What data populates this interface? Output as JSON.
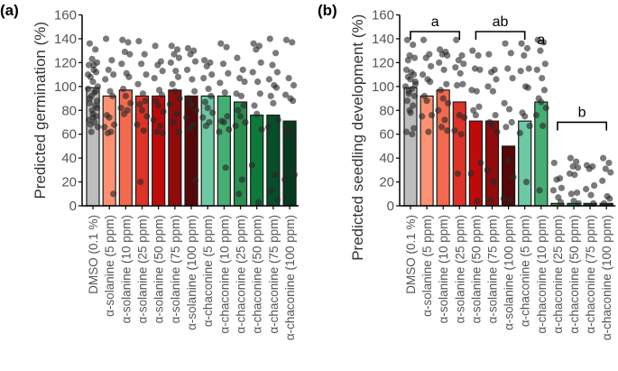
{
  "chart_data": [
    {
      "type": "bar",
      "panel_label": "(a)",
      "title": "",
      "xlabel": "",
      "ylabel": "Predicted germination (%)",
      "ylim": [
        0,
        160
      ],
      "yticks": [
        0,
        20,
        40,
        60,
        80,
        100,
        120,
        140,
        160
      ],
      "grid": false,
      "categories": [
        "DMSO (0.1 %)",
        "α-solanine (5 ppm)",
        "α-solanine (10 ppm)",
        "α-solanine (25 ppm)",
        "α-solanine (50 ppm)",
        "α-solanine (75 ppm)",
        "α-solanine (100 ppm)",
        "α-chaconine (5 ppm)",
        "α-chaconine (10 ppm)",
        "α-chaconine (25 ppm)",
        "α-chaconine (50 ppm)",
        "α-chaconine (75 ppm)",
        "α-chaconine (100 ppm)"
      ],
      "values": [
        99,
        92,
        97,
        92,
        92,
        97,
        92,
        92,
        92,
        87,
        76,
        76,
        71
      ],
      "colors": [
        "#bdbdbd",
        "#fc9272",
        "#f46a4e",
        "#dd3427",
        "#c00a0a",
        "#900b0b",
        "#560808",
        "#6cc9a3",
        "#45ae72",
        "#2b8f50",
        "#0d7a3a",
        "#064f29",
        "#073a1e"
      ],
      "points": [
        [
          136,
          131,
          123,
          120,
          118,
          114,
          112,
          108,
          104,
          100,
          98,
          95,
          92,
          88,
          86,
          84,
          80,
          77,
          75,
          72,
          70,
          68,
          66,
          62,
          118,
          110,
          96,
          90,
          82,
          74
        ],
        [
          140,
          122,
          114,
          110,
          106,
          96,
          92,
          76,
          74,
          68,
          66,
          62,
          61,
          10
        ],
        [
          139,
          137,
          129,
          127,
          119,
          111,
          108,
          98,
          92,
          86,
          82,
          80,
          77
        ],
        [
          138,
          127,
          119,
          110,
          102,
          94,
          88,
          85,
          80,
          75,
          68,
          63,
          20
        ],
        [
          134,
          121,
          118,
          113,
          107,
          97,
          93,
          88,
          84,
          79,
          72,
          67,
          62,
          61
        ],
        [
          134,
          131,
          127,
          124,
          120,
          113,
          108,
          102,
          96,
          90,
          85,
          77,
          70,
          62
        ],
        [
          132,
          130,
          127,
          121,
          114,
          106,
          96,
          90,
          85,
          80,
          74,
          68,
          65,
          21
        ],
        [
          122,
          120,
          117,
          110,
          107,
          98,
          92,
          87,
          82,
          78,
          74,
          70,
          67
        ],
        [
          136,
          133,
          119,
          111,
          103,
          95,
          75,
          71,
          70,
          64,
          62,
          32
        ],
        [
          124,
          114,
          107,
          104,
          94,
          92,
          84,
          80,
          75,
          70,
          67,
          22,
          10
        ],
        [
          136,
          134,
          131,
          120,
          112,
          104,
          94,
          84,
          77,
          64,
          34,
          3
        ],
        [
          140,
          128,
          118,
          112,
          106,
          101,
          99,
          92,
          86,
          72,
          66,
          26,
          13,
          5
        ],
        [
          139,
          137,
          107,
          101,
          93,
          90,
          88,
          65,
          61,
          26,
          22
        ]
      ]
    },
    {
      "type": "bar",
      "panel_label": "(b)",
      "title": "",
      "xlabel": "",
      "ylabel": "Predicted seedling development (%)",
      "ylim": [
        0,
        160
      ],
      "yticks": [
        0,
        20,
        40,
        60,
        80,
        100,
        120,
        140,
        160
      ],
      "grid": false,
      "categories": [
        "DMSO (0.1 %)",
        "α-solanine (5 ppm)",
        "α-solanine (10 ppm)",
        "α-solanine (25 ppm)",
        "α-solanine (50 ppm)",
        "α-solanine (75 ppm)",
        "α-solanine (100 ppm)",
        "α-chaconine (5 ppm)",
        "α-chaconine (10 ppm)",
        "α-chaconine (25 ppm)",
        "α-chaconine (50 ppm)",
        "α-chaconine (75 ppm)",
        "α-chaconine (100 ppm)"
      ],
      "values": [
        99,
        92,
        97,
        87,
        71,
        71,
        50,
        71,
        87,
        2,
        2,
        2,
        2
      ],
      "colors": [
        "#bdbdbd",
        "#fc9272",
        "#f46a4e",
        "#dd3427",
        "#c00a0a",
        "#900b0b",
        "#560808",
        "#6cc9a3",
        "#45ae72",
        "#2b8f50",
        "#0d7a3a",
        "#064f29",
        "#073a1e"
      ],
      "points": [
        [
          139,
          135,
          126,
          124,
          114,
          112,
          110,
          108,
          106,
          104,
          100,
          98,
          96,
          92,
          88,
          84,
          80,
          78,
          65,
          62,
          60,
          122,
          102,
          94
        ],
        [
          139,
          127,
          124,
          117,
          110,
          106,
          104,
          92,
          88,
          76,
          75,
          62
        ],
        [
          131,
          129,
          127,
          126,
          120,
          114,
          102,
          97,
          90,
          86,
          80,
          72,
          66,
          63
        ],
        [
          139,
          126,
          122,
          119,
          116,
          111,
          102,
          101,
          76,
          74,
          63,
          60,
          27
        ],
        [
          130,
          126,
          115,
          114,
          97,
          96,
          83,
          80,
          76,
          36,
          27,
          4
        ],
        [
          127,
          114,
          112,
          106,
          100,
          96,
          76,
          70,
          67,
          62,
          30,
          20,
          5
        ],
        [
          136,
          128,
          115,
          107,
          86,
          81,
          70,
          66,
          38,
          24,
          6,
          5
        ],
        [
          136,
          132,
          126,
          115,
          113,
          100,
          99,
          78,
          75,
          67,
          61,
          20
        ],
        [
          139,
          137,
          130,
          119,
          114,
          107,
          97,
          90,
          87,
          82,
          76,
          67,
          13
        ],
        [
          36,
          23,
          22,
          15,
          13,
          7,
          3
        ],
        [
          40,
          37,
          33,
          32,
          27,
          26,
          11,
          10,
          4,
          2
        ],
        [
          34,
          33,
          31,
          17,
          14,
          9,
          2
        ],
        [
          40,
          36,
          31,
          28,
          21,
          8,
          6,
          2
        ]
      ],
      "annotations": [
        {
          "label": "a",
          "bracket_from": 0,
          "bracket_to": 3,
          "y": 146
        },
        {
          "label": "ab",
          "bracket_from": 4,
          "bracket_to": 7,
          "y": 146
        },
        {
          "label": "a",
          "bracket_from": 8,
          "bracket_to": 8,
          "y": 146,
          "no_bracket": true
        },
        {
          "label": "b",
          "bracket_from": 9,
          "bracket_to": 12,
          "y": 70
        }
      ]
    }
  ]
}
